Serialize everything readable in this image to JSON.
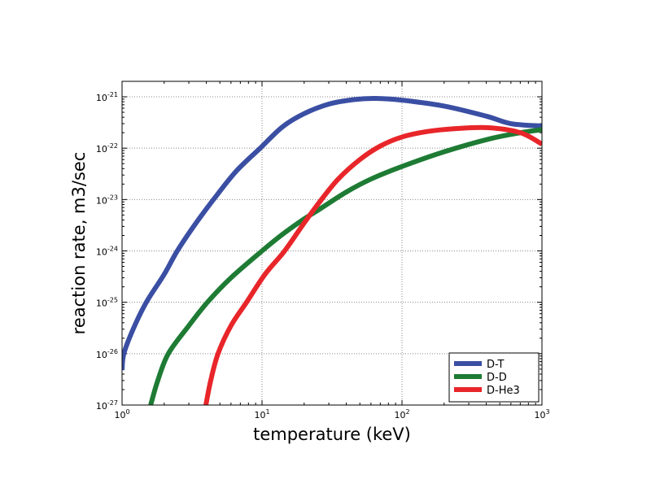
{
  "chart_data": {
    "type": "line",
    "title": "",
    "xlabel": "temperature (keV)",
    "ylabel": "reaction rate, m3/sec",
    "xscale": "log",
    "yscale": "log",
    "xlim": [
      1,
      1000
    ],
    "ylim": [
      1e-27,
      2e-21
    ],
    "grid": true,
    "legend_position": "bottom-right",
    "x_ticks": [
      {
        "value": 1,
        "base": "10",
        "exp": "0"
      },
      {
        "value": 10,
        "base": "10",
        "exp": "1"
      },
      {
        "value": 100,
        "base": "10",
        "exp": "2"
      },
      {
        "value": 1000,
        "base": "10",
        "exp": "3"
      }
    ],
    "y_ticks": [
      {
        "value": 1e-27,
        "base": "10",
        "exp": "-27"
      },
      {
        "value": 1e-26,
        "base": "10",
        "exp": "-26"
      },
      {
        "value": 1e-25,
        "base": "10",
        "exp": "-25"
      },
      {
        "value": 1e-24,
        "base": "10",
        "exp": "-24"
      },
      {
        "value": 1e-23,
        "base": "10",
        "exp": "-23"
      },
      {
        "value": 1e-22,
        "base": "10",
        "exp": "-22"
      },
      {
        "value": 1e-21,
        "base": "10",
        "exp": "-21"
      }
    ],
    "series": [
      {
        "name": "D-T",
        "color": "#3a4fa3",
        "x": [
          1,
          1.03,
          1.2,
          1.49,
          2.0,
          2.48,
          3.3,
          4.5,
          6.5,
          9.7,
          14,
          20,
          30,
          45,
          65,
          100,
          200,
          400,
          600,
          1000
        ],
        "y": [
          4.8e-27,
          1e-26,
          3e-26,
          1e-25,
          3.5e-25,
          1e-24,
          3.2e-24,
          1e-23,
          3.5e-23,
          1e-22,
          2.6e-22,
          4.7e-22,
          7.2e-22,
          8.8e-22,
          9.3e-22,
          8.6e-22,
          6.6e-22,
          4.2e-22,
          3e-22,
          2.7e-22
        ]
      },
      {
        "name": "D-D",
        "color": "#1e7b34",
        "x": [
          1.6,
          1.8,
          2.14,
          3.0,
          4.07,
          6.0,
          10,
          14,
          20,
          25.8,
          40,
          60,
          100,
          200,
          415,
          700,
          1000
        ],
        "y": [
          1e-27,
          3e-27,
          1e-26,
          3.5e-26,
          1e-25,
          3e-25,
          1e-24,
          2.1e-24,
          4.2e-24,
          6.5e-24,
          1.4e-23,
          2.5e-23,
          4.4e-23,
          8.5e-23,
          1.5e-22,
          2e-22,
          2.3e-22
        ]
      },
      {
        "name": "D-He3",
        "color": "#e8262a",
        "x": [
          3.97,
          4.3,
          4.85,
          6.0,
          7.75,
          10.5,
          14.5,
          20,
          25.8,
          35,
          50,
          70,
          100,
          150,
          242,
          415,
          700,
          1000
        ],
        "y": [
          1e-27,
          3e-27,
          1e-26,
          3.5e-26,
          1e-25,
          3.5e-25,
          1e-24,
          3.5e-24,
          9e-24,
          2.5e-23,
          6e-23,
          1.1e-22,
          1.65e-22,
          2.1e-22,
          2.4e-22,
          2.5e-22,
          2e-22,
          1.2e-22
        ]
      }
    ]
  }
}
